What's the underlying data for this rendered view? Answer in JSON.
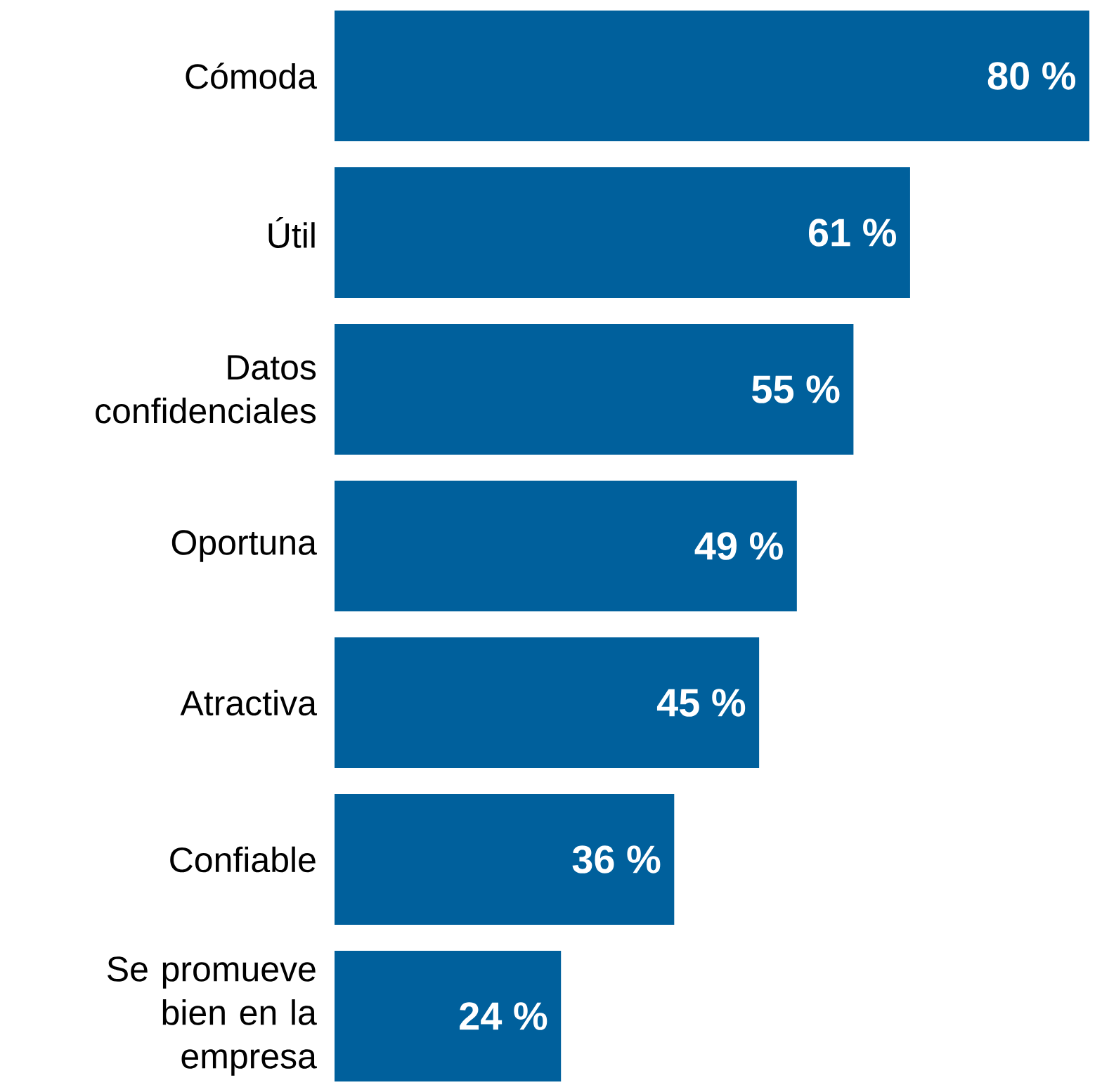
{
  "chart_data": {
    "type": "bar",
    "orientation": "horizontal",
    "categories": [
      "Cómoda",
      "Útil",
      "Datos confidenciales",
      "Oportuna",
      "Atractiva",
      "Confiable",
      "Se promueve bien en la empresa"
    ],
    "values": [
      80,
      61,
      55,
      49,
      45,
      36,
      24
    ],
    "value_labels": [
      "80 %",
      "61 %",
      "55 %",
      "49 %",
      "45 %",
      "36 %",
      "24 %"
    ],
    "color": "#00609c"
  }
}
